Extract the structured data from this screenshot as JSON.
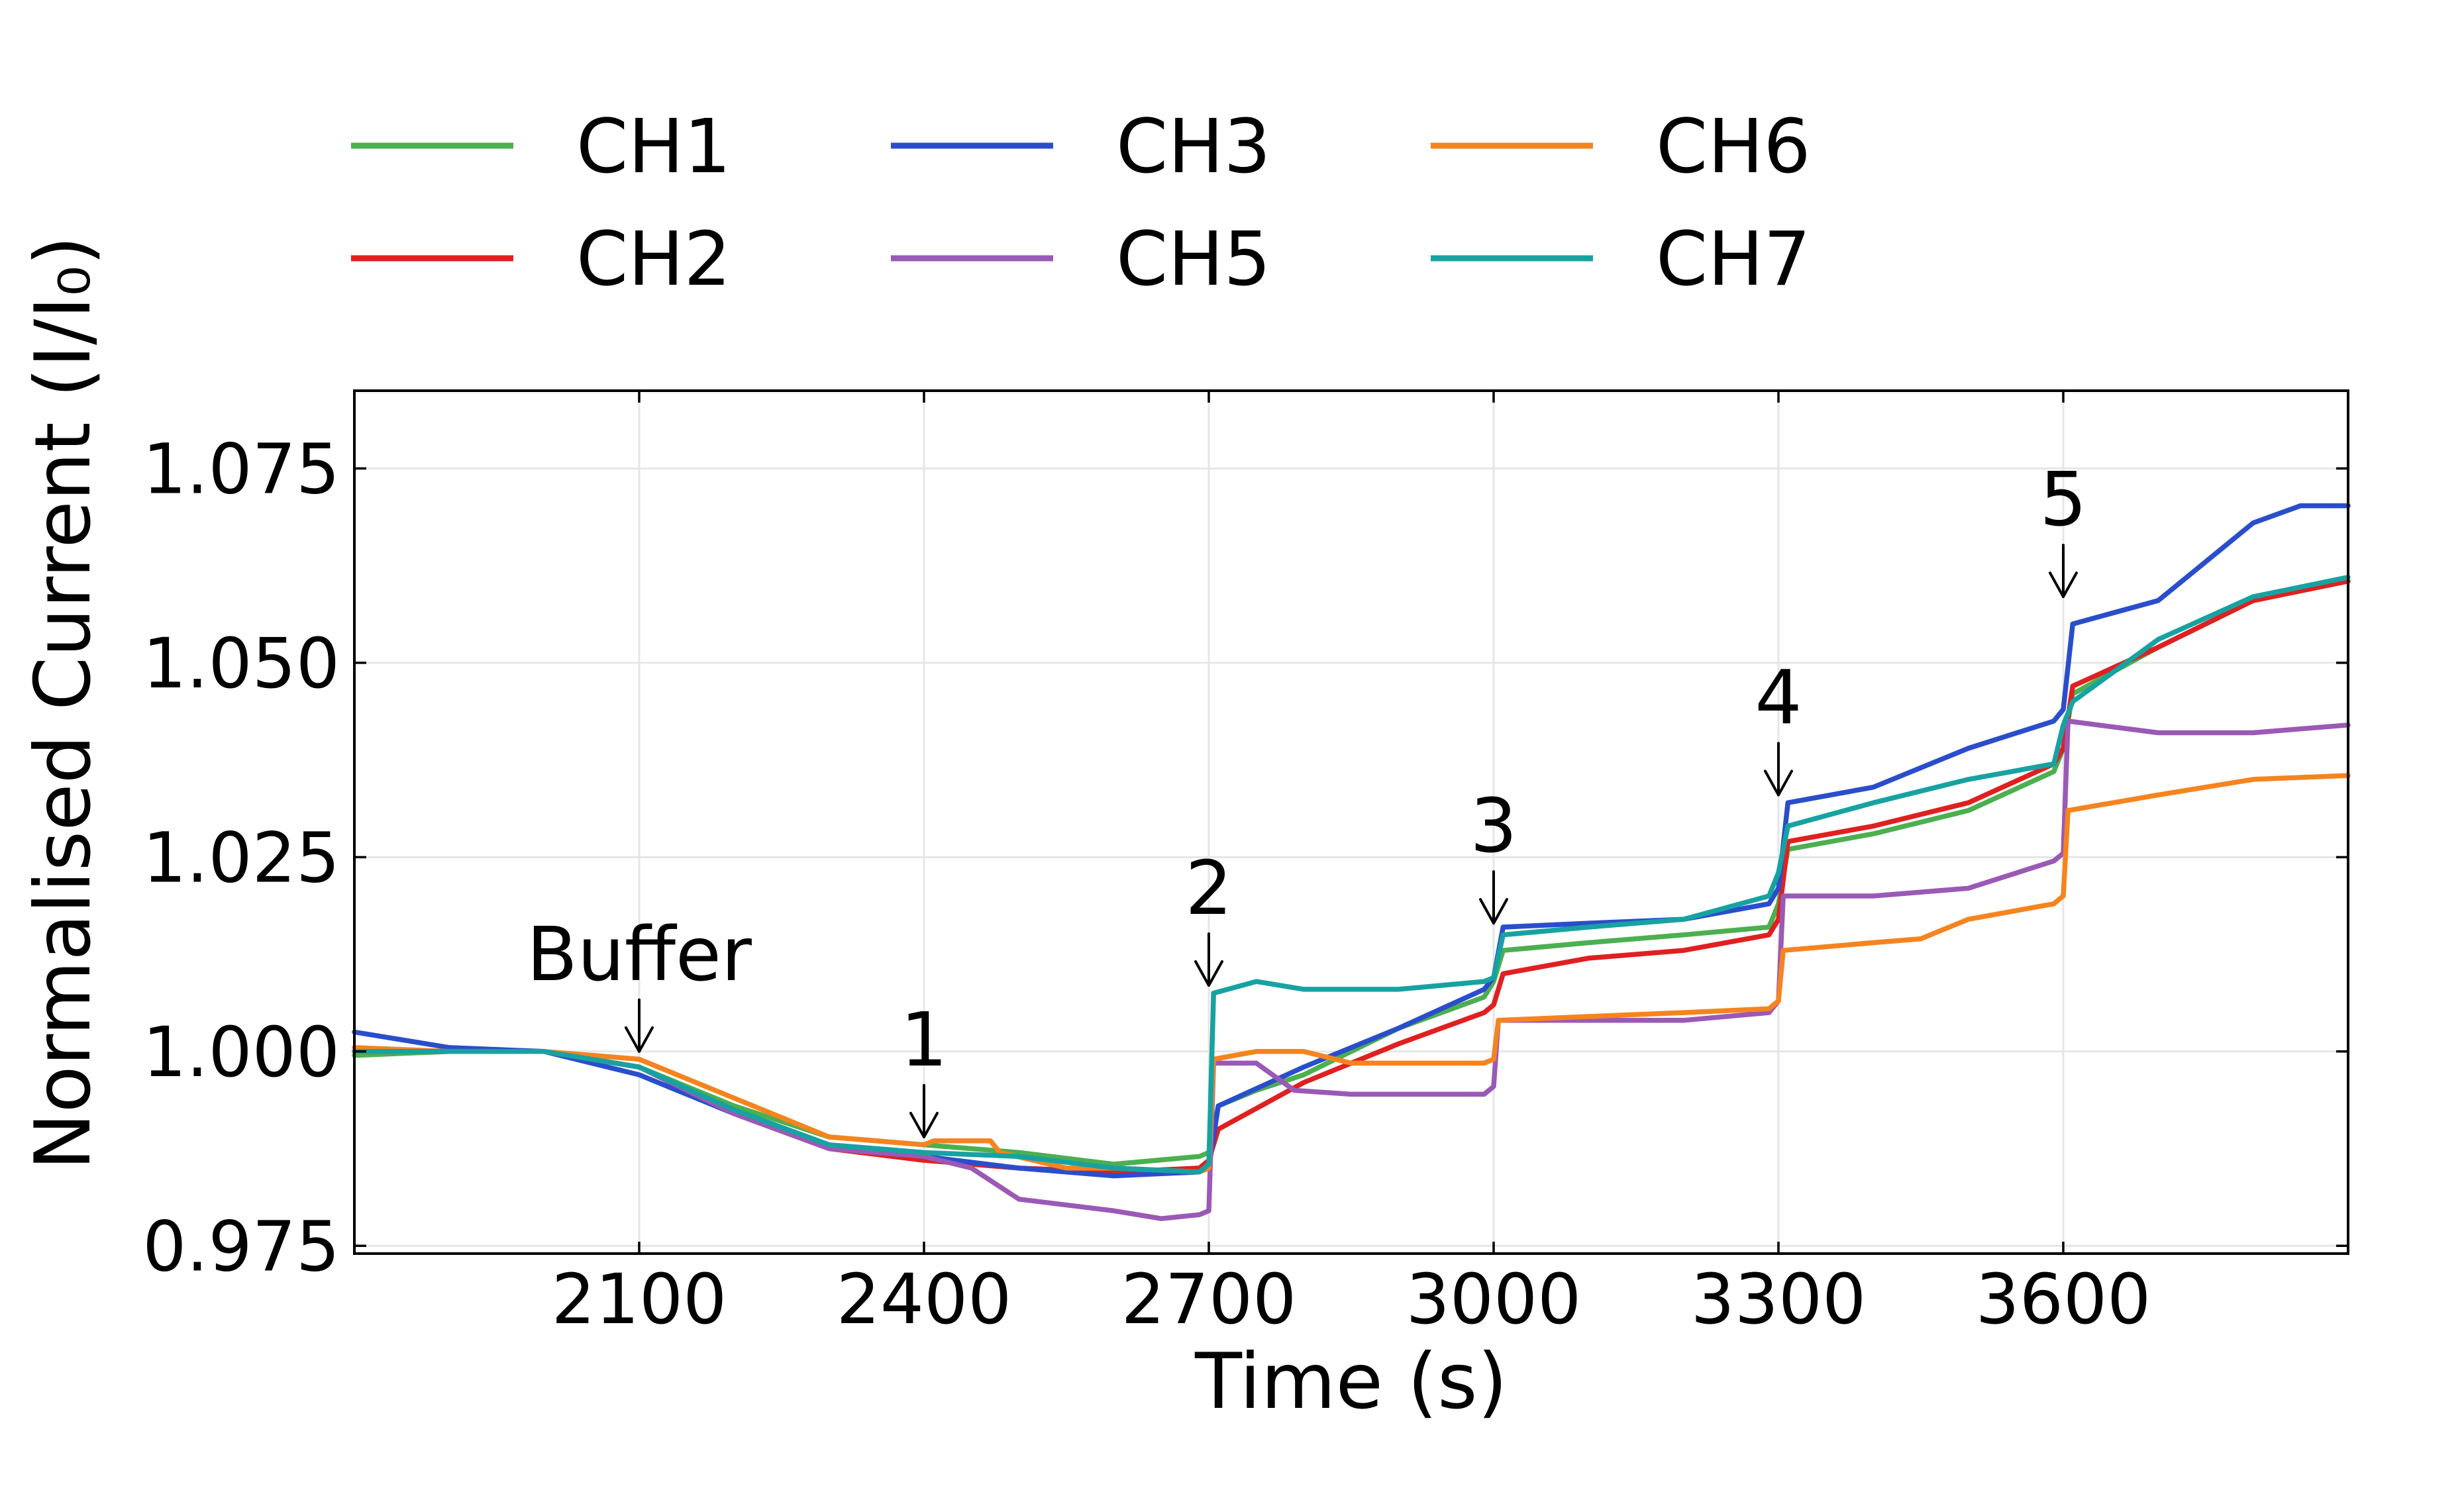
{
  "chart_data": {
    "type": "line",
    "xlabel": "Time (s)",
    "ylabel": "Normalised Current (I/I₀)",
    "xlim": [
      1800,
      3900
    ],
    "ylim": [
      0.974,
      1.085
    ],
    "xticks": [
      2100,
      2400,
      2700,
      3000,
      3300,
      3600
    ],
    "xtick_labels": [
      "2100",
      "2400",
      "2700",
      "3000",
      "3300",
      "3600"
    ],
    "yticks": [
      0.975,
      1.0,
      1.025,
      1.05,
      1.075
    ],
    "ytick_labels": [
      "0.975",
      "1.000",
      "1.025",
      "1.050",
      "1.075"
    ],
    "grid": true,
    "legend": {
      "position": "top",
      "columns": 4
    },
    "series": [
      {
        "name": "CH1",
        "color": "#4caf50",
        "points": [
          [
            1800,
            0.9995
          ],
          [
            1900,
            1.0
          ],
          [
            2000,
            1.0
          ],
          [
            2100,
            0.998
          ],
          [
            2200,
            0.993
          ],
          [
            2300,
            0.989
          ],
          [
            2400,
            0.988
          ],
          [
            2500,
            0.987
          ],
          [
            2600,
            0.9855
          ],
          [
            2690,
            0.9865
          ],
          [
            2700,
            0.987
          ],
          [
            2710,
            0.993
          ],
          [
            2750,
            0.995
          ],
          [
            2800,
            0.997
          ],
          [
            2900,
            1.003
          ],
          [
            2990,
            1.007
          ],
          [
            3000,
            1.009
          ],
          [
            3010,
            1.013
          ],
          [
            3100,
            1.014
          ],
          [
            3200,
            1.015
          ],
          [
            3290,
            1.016
          ],
          [
            3300,
            1.019
          ],
          [
            3310,
            1.026
          ],
          [
            3400,
            1.028
          ],
          [
            3500,
            1.031
          ],
          [
            3590,
            1.036
          ],
          [
            3600,
            1.039
          ],
          [
            3610,
            1.046
          ],
          [
            3700,
            1.052
          ],
          [
            3800,
            1.058
          ],
          [
            3900,
            1.0605
          ]
        ]
      },
      {
        "name": "CH2",
        "color": "#e02020",
        "points": [
          [
            1800,
            1.0
          ],
          [
            1900,
            1.0
          ],
          [
            2000,
            1.0
          ],
          [
            2100,
            0.998
          ],
          [
            2200,
            0.992
          ],
          [
            2300,
            0.9875
          ],
          [
            2400,
            0.986
          ],
          [
            2500,
            0.985
          ],
          [
            2600,
            0.9845
          ],
          [
            2690,
            0.985
          ],
          [
            2700,
            0.986
          ],
          [
            2710,
            0.99
          ],
          [
            2800,
            0.996
          ],
          [
            2900,
            1.001
          ],
          [
            2990,
            1.005
          ],
          [
            3000,
            1.006
          ],
          [
            3010,
            1.01
          ],
          [
            3100,
            1.012
          ],
          [
            3200,
            1.013
          ],
          [
            3290,
            1.015
          ],
          [
            3300,
            1.017
          ],
          [
            3310,
            1.027
          ],
          [
            3400,
            1.029
          ],
          [
            3500,
            1.032
          ],
          [
            3590,
            1.037
          ],
          [
            3600,
            1.039
          ],
          [
            3610,
            1.047
          ],
          [
            3700,
            1.052
          ],
          [
            3800,
            1.058
          ],
          [
            3900,
            1.0605
          ]
        ]
      },
      {
        "name": "CH3",
        "color": "#2a4ecb",
        "points": [
          [
            1800,
            1.0025
          ],
          [
            1900,
            1.0005
          ],
          [
            2000,
            1.0
          ],
          [
            2100,
            0.997
          ],
          [
            2200,
            0.992
          ],
          [
            2300,
            0.988
          ],
          [
            2400,
            0.9865
          ],
          [
            2500,
            0.985
          ],
          [
            2600,
            0.984
          ],
          [
            2690,
            0.9845
          ],
          [
            2700,
            0.985
          ],
          [
            2710,
            0.993
          ],
          [
            2800,
            0.998
          ],
          [
            2900,
            1.003
          ],
          [
            2990,
            1.008
          ],
          [
            3000,
            1.0095
          ],
          [
            3010,
            1.016
          ],
          [
            3100,
            1.0165
          ],
          [
            3200,
            1.017
          ],
          [
            3290,
            1.019
          ],
          [
            3300,
            1.021
          ],
          [
            3310,
            1.032
          ],
          [
            3400,
            1.034
          ],
          [
            3500,
            1.039
          ],
          [
            3590,
            1.0425
          ],
          [
            3600,
            1.044
          ],
          [
            3610,
            1.055
          ],
          [
            3700,
            1.058
          ],
          [
            3750,
            1.063
          ],
          [
            3800,
            1.068
          ],
          [
            3850,
            1.0702
          ],
          [
            3900,
            1.0702
          ]
        ]
      },
      {
        "name": "CH5",
        "color": "#9b59b6",
        "points": [
          [
            1800,
            1.0
          ],
          [
            1900,
            1.0
          ],
          [
            2000,
            1.0
          ],
          [
            2100,
            0.998
          ],
          [
            2200,
            0.992
          ],
          [
            2300,
            0.9875
          ],
          [
            2400,
            0.9865
          ],
          [
            2450,
            0.985
          ],
          [
            2500,
            0.981
          ],
          [
            2600,
            0.9795
          ],
          [
            2650,
            0.9785
          ],
          [
            2690,
            0.979
          ],
          [
            2700,
            0.9795
          ],
          [
            2705,
            0.9985
          ],
          [
            2750,
            0.9985
          ],
          [
            2790,
            0.995
          ],
          [
            2850,
            0.9945
          ],
          [
            2990,
            0.9945
          ],
          [
            3000,
            0.9955
          ],
          [
            3005,
            1.004
          ],
          [
            3100,
            1.004
          ],
          [
            3200,
            1.004
          ],
          [
            3290,
            1.005
          ],
          [
            3300,
            1.0065
          ],
          [
            3305,
            1.02
          ],
          [
            3400,
            1.02
          ],
          [
            3500,
            1.021
          ],
          [
            3590,
            1.0245
          ],
          [
            3600,
            1.0255
          ],
          [
            3605,
            1.0425
          ],
          [
            3700,
            1.041
          ],
          [
            3800,
            1.041
          ],
          [
            3900,
            1.042
          ]
        ]
      },
      {
        "name": "CH6",
        "color": "#f5841f",
        "points": [
          [
            1800,
            1.0005
          ],
          [
            1900,
            1.0
          ],
          [
            2000,
            1.0
          ],
          [
            2100,
            0.999
          ],
          [
            2200,
            0.994
          ],
          [
            2300,
            0.989
          ],
          [
            2400,
            0.988
          ],
          [
            2410,
            0.9885
          ],
          [
            2470,
            0.9885
          ],
          [
            2480,
            0.987
          ],
          [
            2550,
            0.985
          ],
          [
            2600,
            0.985
          ],
          [
            2690,
            0.9845
          ],
          [
            2700,
            0.985
          ],
          [
            2705,
            0.999
          ],
          [
            2750,
            1.0
          ],
          [
            2800,
            1.0
          ],
          [
            2850,
            0.9985
          ],
          [
            2990,
            0.9985
          ],
          [
            3000,
            0.999
          ],
          [
            3005,
            1.004
          ],
          [
            3100,
            1.0045
          ],
          [
            3200,
            1.005
          ],
          [
            3290,
            1.0055
          ],
          [
            3300,
            1.0065
          ],
          [
            3305,
            1.013
          ],
          [
            3400,
            1.014
          ],
          [
            3450,
            1.0145
          ],
          [
            3500,
            1.017
          ],
          [
            3590,
            1.019
          ],
          [
            3600,
            1.02
          ],
          [
            3605,
            1.031
          ],
          [
            3700,
            1.033
          ],
          [
            3800,
            1.035
          ],
          [
            3900,
            1.0355
          ]
        ]
      },
      {
        "name": "CH7",
        "color": "#17a2a2",
        "points": [
          [
            1800,
            1.0
          ],
          [
            1900,
            1.0
          ],
          [
            2000,
            1.0
          ],
          [
            2100,
            0.998
          ],
          [
            2200,
            0.9925
          ],
          [
            2300,
            0.988
          ],
          [
            2400,
            0.987
          ],
          [
            2500,
            0.9865
          ],
          [
            2600,
            0.985
          ],
          [
            2690,
            0.9845
          ],
          [
            2700,
            0.9855
          ],
          [
            2705,
            1.0075
          ],
          [
            2750,
            1.009
          ],
          [
            2800,
            1.008
          ],
          [
            2900,
            1.008
          ],
          [
            2990,
            1.009
          ],
          [
            3000,
            1.0095
          ],
          [
            3010,
            1.015
          ],
          [
            3100,
            1.016
          ],
          [
            3200,
            1.017
          ],
          [
            3290,
            1.02
          ],
          [
            3300,
            1.023
          ],
          [
            3310,
            1.029
          ],
          [
            3400,
            1.032
          ],
          [
            3500,
            1.035
          ],
          [
            3590,
            1.037
          ],
          [
            3600,
            1.042
          ],
          [
            3610,
            1.045
          ],
          [
            3700,
            1.053
          ],
          [
            3800,
            1.0585
          ],
          [
            3900,
            1.061
          ]
        ]
      }
    ],
    "annotations": [
      {
        "label": "Buffer",
        "x": 2100,
        "y": 1.0
      },
      {
        "label": "1",
        "x": 2400,
        "y": 0.989
      },
      {
        "label": "2",
        "x": 2700,
        "y": 1.0085
      },
      {
        "label": "3",
        "x": 3000,
        "y": 1.0165
      },
      {
        "label": "4",
        "x": 3300,
        "y": 1.033
      },
      {
        "label": "5",
        "x": 3600,
        "y": 1.0585
      }
    ]
  }
}
